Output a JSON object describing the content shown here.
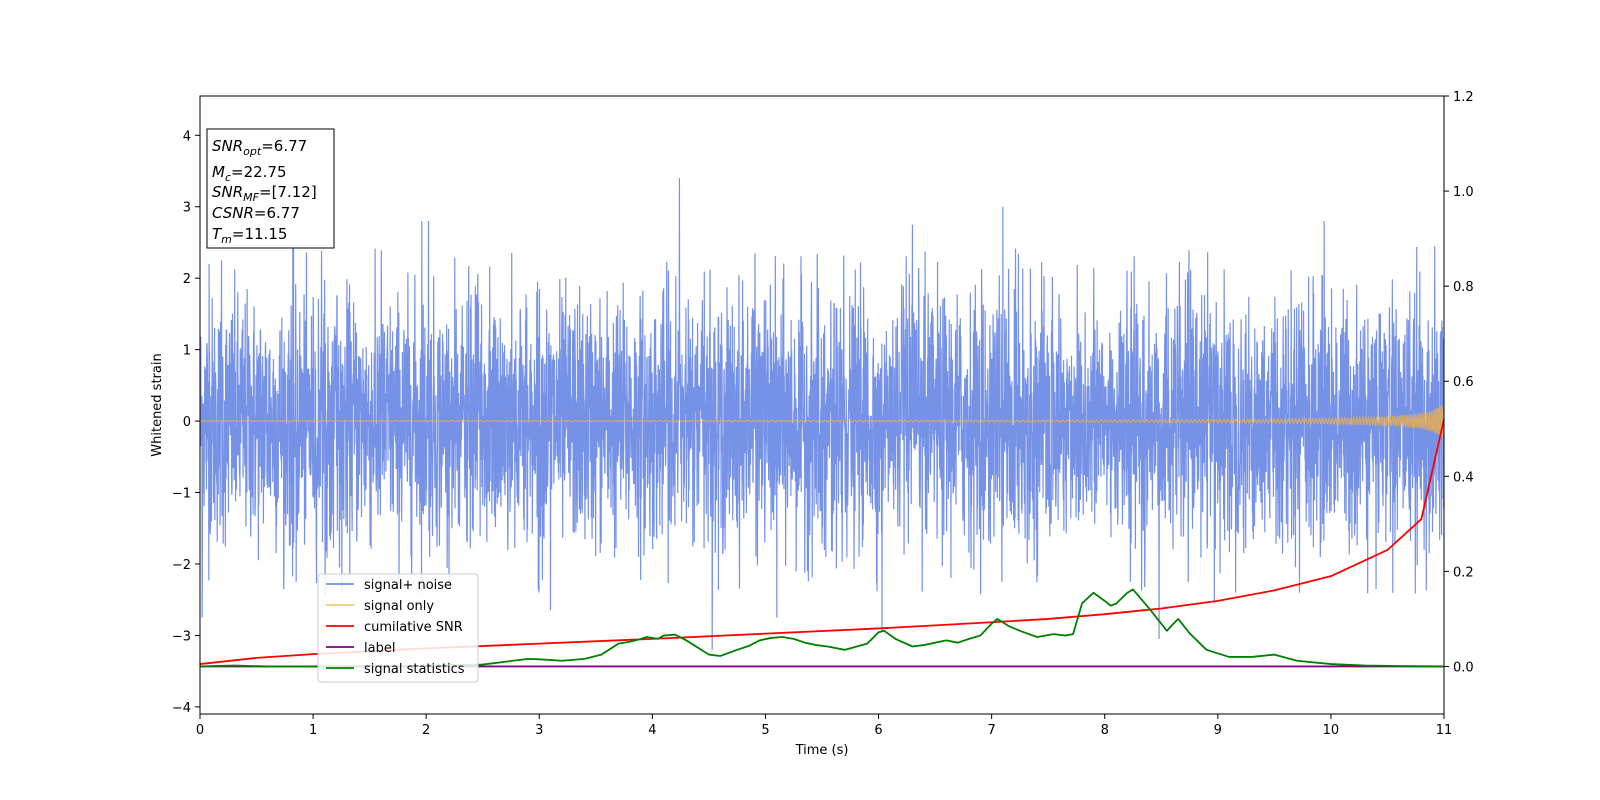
{
  "chart_data": {
    "type": "line",
    "xlabel": "Time (s)",
    "ylabel": "Whitened strain",
    "xlim": [
      0,
      11
    ],
    "ylim_left": [
      -4.1,
      4.55
    ],
    "ylim_right": [
      -0.1,
      1.2
    ],
    "x_ticks": [
      0,
      1,
      2,
      3,
      4,
      5,
      6,
      7,
      8,
      9,
      10,
      11
    ],
    "y_ticks_left": [
      -4,
      -3,
      -2,
      -1,
      0,
      1,
      2,
      3,
      4
    ],
    "y_ticks_left_labels": [
      "−4",
      "−3",
      "−2",
      "−1",
      "0",
      "1",
      "2",
      "3",
      "4"
    ],
    "y_ticks_right": [
      0.0,
      0.2,
      0.4,
      0.6,
      0.8,
      1.0,
      1.2
    ],
    "y_ticks_right_labels": [
      "0.0",
      "0.2",
      "0.4",
      "0.6",
      "0.8",
      "1.0",
      "1.2"
    ],
    "legend_position": "lower-left",
    "info_box": {
      "snr_opt": {
        "main": "SNR",
        "sub": "opt",
        "value": "=6.77"
      },
      "mc": {
        "main": "M",
        "sub": "c",
        "value": "=22.75"
      },
      "snr_mf": {
        "main": "SNR",
        "sub": "MF",
        "value": "=[7.12]"
      },
      "csnr": {
        "main": "CSNR",
        "value": "=6.77"
      },
      "tm": {
        "main": "T",
        "sub": "m",
        "value": "=11.15"
      }
    },
    "series": [
      {
        "name": "signal+ noise",
        "color": "#6f8ce6",
        "axis": "left",
        "noise_sigma": 0.85,
        "peaks": [
          [
            0.08,
            2.2
          ],
          [
            0.19,
            2.25
          ],
          [
            0.82,
            2.5
          ],
          [
            1.96,
            2.8
          ],
          [
            2.02,
            2.8
          ],
          [
            4.24,
            3.4
          ],
          [
            6.3,
            2.75
          ],
          [
            7.1,
            3.0
          ],
          [
            9.94,
            2.8
          ],
          [
            0.02,
            -2.75
          ],
          [
            0.85,
            -2.25
          ],
          [
            3.1,
            -2.65
          ],
          [
            4.53,
            -3.2
          ],
          [
            5.1,
            -2.75
          ],
          [
            6.03,
            -2.95
          ],
          [
            8.48,
            -3.05
          ],
          [
            8.97,
            -2.55
          ],
          [
            10.4,
            -2.35
          ]
        ]
      },
      {
        "name": "signal only",
        "color": "#f5b041",
        "axis": "left",
        "chirp_amplitude_end": 0.25
      },
      {
        "name": "cumilative SNR",
        "color": "#ff0000",
        "axis": "right",
        "x": [
          0,
          0.5,
          1,
          2,
          3,
          4,
          5,
          6,
          7,
          7.5,
          8,
          8.5,
          9,
          9.5,
          10,
          10.5,
          10.8,
          11
        ],
        "y": [
          0.005,
          0.018,
          0.026,
          0.038,
          0.048,
          0.058,
          0.069,
          0.08,
          0.093,
          0.1,
          0.11,
          0.122,
          0.138,
          0.16,
          0.19,
          0.245,
          0.31,
          0.52
        ]
      },
      {
        "name": "label",
        "color": "#800080",
        "axis": "right",
        "x": [
          0,
          11
        ],
        "y": [
          0,
          0
        ]
      },
      {
        "name": "signal statistics",
        "color": "#008000",
        "axis": "right",
        "x": [
          0,
          0.3,
          0.6,
          1.0,
          1.5,
          2.0,
          2.5,
          2.7,
          2.9,
          3.0,
          3.2,
          3.4,
          3.55,
          3.7,
          3.8,
          3.9,
          3.95,
          4.05,
          4.1,
          4.2,
          4.3,
          4.5,
          4.6,
          4.75,
          4.85,
          4.95,
          5.05,
          5.15,
          5.25,
          5.35,
          5.45,
          5.55,
          5.7,
          5.9,
          6.0,
          6.05,
          6.15,
          6.3,
          6.4,
          6.5,
          6.6,
          6.7,
          6.8,
          6.9,
          7.0,
          7.05,
          7.15,
          7.25,
          7.4,
          7.55,
          7.65,
          7.72,
          7.8,
          7.9,
          8.0,
          8.05,
          8.1,
          8.2,
          8.25,
          8.4,
          8.55,
          8.6,
          8.65,
          8.75,
          8.9,
          9.1,
          9.3,
          9.5,
          9.7,
          10.0,
          10.3,
          10.6,
          11.0
        ],
        "y": [
          0.0,
          0.002,
          0.0,
          0.0,
          0.001,
          0.002,
          0.004,
          0.01,
          0.016,
          0.015,
          0.012,
          0.016,
          0.025,
          0.048,
          0.052,
          0.058,
          0.062,
          0.058,
          0.065,
          0.067,
          0.055,
          0.025,
          0.022,
          0.035,
          0.043,
          0.055,
          0.06,
          0.062,
          0.058,
          0.05,
          0.045,
          0.042,
          0.035,
          0.048,
          0.072,
          0.075,
          0.058,
          0.042,
          0.045,
          0.05,
          0.055,
          0.05,
          0.058,
          0.065,
          0.09,
          0.1,
          0.085,
          0.075,
          0.062,
          0.068,
          0.065,
          0.068,
          0.133,
          0.155,
          0.138,
          0.128,
          0.132,
          0.155,
          0.162,
          0.12,
          0.075,
          0.088,
          0.1,
          0.07,
          0.035,
          0.02,
          0.02,
          0.025,
          0.012,
          0.005,
          0.002,
          0.001,
          0.0
        ]
      }
    ]
  }
}
